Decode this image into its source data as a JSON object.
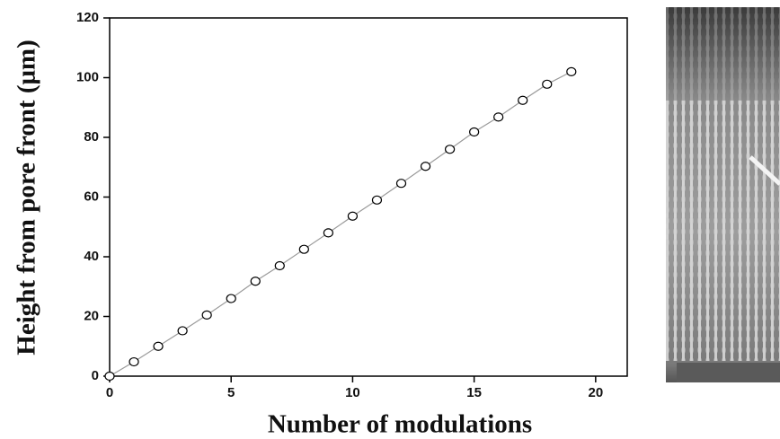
{
  "chart_data": {
    "type": "scatter-line",
    "xlabel": "Number of modulations",
    "ylabel": "Height from pore front (μm)",
    "x": [
      0,
      1,
      2,
      3,
      4,
      5,
      6,
      7,
      8,
      9,
      10,
      11,
      12,
      13,
      14,
      15,
      16,
      17,
      18,
      19
    ],
    "series": [
      {
        "color": "#000000",
        "line_color": "#9a9a9a",
        "values": [
          0,
          4.8,
          10,
          15.2,
          20.5,
          26,
          31.8,
          37,
          42.5,
          48,
          53.6,
          59,
          64.6,
          70.3,
          76,
          81.8,
          86.8,
          92.4,
          97.8,
          102
        ]
      }
    ],
    "xlim": [
      0,
      21.3
    ],
    "xticks": [
      0,
      5,
      10,
      15,
      20
    ],
    "ylim": [
      0,
      120
    ],
    "yticks": [
      0,
      20,
      40,
      60,
      80,
      100,
      120
    ]
  }
}
